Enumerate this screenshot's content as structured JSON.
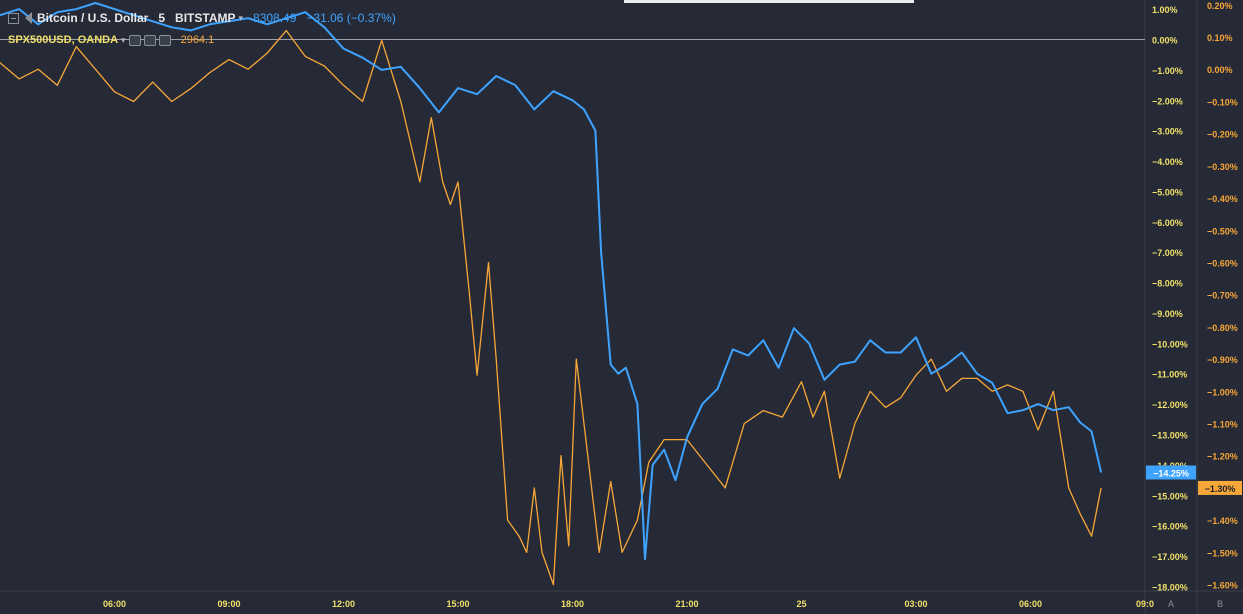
{
  "legend": {
    "symbol": "Bitcoin / U.S. Dollar",
    "interval": "5",
    "exchange": "BITSTAMP",
    "price": "8308.49",
    "change": "−31.06 (−0.37%)",
    "compare_symbol": "SPX500USD, OANDA",
    "compare_value": "2964.1"
  },
  "axis_footer": {
    "left": "A",
    "right": "B"
  },
  "colors": {
    "background": "#262a36",
    "btc": "#3ea3ff",
    "spx": "#f7a738",
    "left_axis_text": "#f0e06a",
    "right_axis_text": "#f7a738"
  },
  "chart_data": {
    "type": "line",
    "xlim": [
      3.0,
      33.0
    ],
    "x_tick_values": [
      6,
      9,
      12,
      15,
      18,
      21,
      24,
      27,
      30,
      33
    ],
    "x_tick_labels": [
      "06:00",
      "09:00",
      "12:00",
      "15:00",
      "18:00",
      "21:00",
      "25",
      "03:00",
      "06:00",
      "09:0"
    ],
    "y_left": {
      "ylim": [
        -18.15,
        1.3
      ],
      "ticks": [
        1,
        0,
        -1,
        -2,
        -3,
        -4,
        -5,
        -6,
        -7,
        -8,
        -9,
        -10,
        -11,
        -12,
        -13,
        -14,
        -15,
        -16,
        -17,
        -18
      ],
      "tick_labels": [
        "1.00%",
        "0.00%",
        "−1.00%",
        "−2.00%",
        "−3.00%",
        "−4.00%",
        "−5.00%",
        "−6.00%",
        "−7.00%",
        "−8.00%",
        "−9.00%",
        "−10.00%",
        "−11.00%",
        "−12.00%",
        "−13.00%",
        "−14.00%",
        "−15.00%",
        "−16.00%",
        "−17.00%",
        "−18.00%"
      ],
      "last_value_label": "−14.25%",
      "zero_line": 0
    },
    "y_right": {
      "ylim": [
        -1.62,
        0.215
      ],
      "ticks": [
        0.2,
        0.1,
        0,
        -0.1,
        -0.2,
        -0.3,
        -0.4,
        -0.5,
        -0.6,
        -0.7,
        -0.8,
        -0.9,
        -1.0,
        -1.1,
        -1.2,
        -1.3,
        -1.4,
        -1.5,
        -1.6
      ],
      "tick_labels": [
        "0.20%",
        "0.10%",
        "0.00%",
        "−0.10%",
        "−0.20%",
        "−0.30%",
        "−0.40%",
        "−0.50%",
        "−0.60%",
        "−0.70%",
        "−0.80%",
        "−0.90%",
        "−1.00%",
        "−1.10%",
        "−1.20%",
        "−1.30%",
        "−1.40%",
        "−1.50%",
        "−1.60%"
      ],
      "last_value_label": "−1.30%"
    },
    "series": [
      {
        "axis": "left",
        "x": [
          3.0,
          3.5,
          4.0,
          4.5,
          5.0,
          5.5,
          6.0,
          6.5,
          7.0,
          7.5,
          8.0,
          8.5,
          9.0,
          9.5,
          10.0,
          10.5,
          11.0,
          11.5,
          12.0,
          12.5,
          13.0,
          13.5,
          14.0,
          14.5,
          15.0,
          15.5,
          16.0,
          16.5,
          17.0,
          17.5,
          18.0,
          18.3,
          18.6,
          18.75,
          19.0,
          19.2,
          19.4,
          19.7,
          19.9,
          20.1,
          20.4,
          20.7,
          21.0,
          21.4,
          21.8,
          22.2,
          22.6,
          23.0,
          23.4,
          23.8,
          24.2,
          24.6,
          25.0,
          25.4,
          25.8,
          26.2,
          26.6,
          27.0,
          27.4,
          27.8,
          28.2,
          28.6,
          29.0,
          29.4,
          29.8,
          30.2,
          30.6,
          31.0,
          31.3,
          31.6,
          31.85
        ],
        "values": [
          0.8,
          1.0,
          0.5,
          0.9,
          1.0,
          1.2,
          1.0,
          0.8,
          0.6,
          0.4,
          0.3,
          0.5,
          0.6,
          0.7,
          0.5,
          0.7,
          0.9,
          0.4,
          -0.3,
          -0.6,
          -1.0,
          -0.9,
          -1.6,
          -2.4,
          -1.6,
          -1.8,
          -1.2,
          -1.5,
          -2.3,
          -1.7,
          -2.0,
          -2.3,
          -3.0,
          -7.0,
          -10.7,
          -11.0,
          -10.8,
          -12.0,
          -17.1,
          -14.0,
          -13.5,
          -14.5,
          -13.1,
          -12.0,
          -11.5,
          -10.2,
          -10.4,
          -9.9,
          -10.8,
          -9.5,
          -10.0,
          -11.2,
          -10.7,
          -10.6,
          -9.9,
          -10.3,
          -10.3,
          -9.8,
          -11.0,
          -10.7,
          -10.3,
          -11.0,
          -11.3,
          -12.3,
          -12.2,
          -12.0,
          -12.2,
          -12.1,
          -12.6,
          -12.9,
          -14.25
        ]
      },
      {
        "axis": "right",
        "x": [
          3.0,
          3.5,
          4.0,
          4.5,
          5.0,
          5.5,
          6.0,
          6.5,
          7.0,
          7.5,
          8.0,
          8.5,
          9.0,
          9.5,
          10.0,
          10.5,
          11.0,
          11.5,
          12.0,
          12.5,
          13.0,
          13.5,
          14.0,
          14.3,
          14.6,
          14.8,
          15.0,
          15.3,
          15.5,
          15.8,
          16.0,
          16.3,
          16.6,
          16.8,
          17.0,
          17.2,
          17.5,
          17.7,
          17.9,
          18.1,
          18.4,
          18.7,
          19.0,
          19.3,
          19.7,
          20.0,
          20.4,
          21.0,
          22.0,
          22.5,
          23.0,
          23.5,
          24.0,
          24.3,
          24.6,
          25.0,
          25.4,
          25.8,
          26.2,
          26.6,
          27.0,
          27.4,
          27.8,
          28.2,
          28.6,
          29.0,
          29.4,
          29.8,
          30.2,
          30.6,
          31.0,
          31.3,
          31.6,
          31.85
        ],
        "values": [
          0.02,
          -0.03,
          0.0,
          -0.05,
          0.07,
          0.0,
          -0.07,
          -0.1,
          -0.04,
          -0.1,
          -0.06,
          -0.01,
          0.03,
          0.0,
          0.05,
          0.12,
          0.04,
          0.01,
          -0.05,
          -0.1,
          0.09,
          -0.1,
          -0.35,
          -0.15,
          -0.35,
          -0.42,
          -0.35,
          -0.7,
          -0.95,
          -0.6,
          -0.9,
          -1.4,
          -1.45,
          -1.5,
          -1.3,
          -1.5,
          -1.6,
          -1.2,
          -1.48,
          -0.9,
          -1.2,
          -1.5,
          -1.28,
          -1.5,
          -1.4,
          -1.22,
          -1.15,
          -1.15,
          -1.3,
          -1.1,
          -1.06,
          -1.08,
          -0.97,
          -1.08,
          -1.0,
          -1.27,
          -1.1,
          -1.0,
          -1.05,
          -1.02,
          -0.95,
          -0.9,
          -1.0,
          -0.96,
          -0.96,
          -1.0,
          -0.98,
          -1.0,
          -1.12,
          -1.0,
          -1.3,
          -1.38,
          -1.45,
          -1.3
        ]
      }
    ]
  }
}
